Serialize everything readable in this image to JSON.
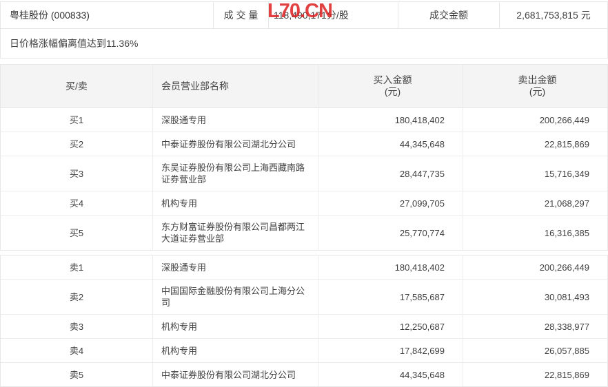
{
  "watermark": "L70.CN",
  "info_bar": {
    "stock_name": "粤桂股份 (000833)",
    "volume_label": "成 交 量",
    "volume_value": "118,490,171分/股",
    "amount_label": "成交金额",
    "amount_value": "2,681,753,815 元",
    "notice": "日价格涨幅偏离值达到11.36%"
  },
  "table": {
    "headers": {
      "rank": "买/卖",
      "name": "会员营业部名称",
      "buy_line1": "买入金额",
      "buy_line2": "(元)",
      "sell_line1": "卖出金额",
      "sell_line2": "(元)"
    },
    "buy_rows": [
      {
        "rank": "买1",
        "name": "深股通专用",
        "buy": "180,418,402",
        "sell": "200,266,449"
      },
      {
        "rank": "买2",
        "name": "中泰证券股份有限公司湖北分公司",
        "buy": "44,345,648",
        "sell": "22,815,869"
      },
      {
        "rank": "买3",
        "name": "东吴证券股份有限公司上海西藏南路证券营业部",
        "buy": "28,447,735",
        "sell": "15,716,349"
      },
      {
        "rank": "买4",
        "name": "机构专用",
        "buy": "27,099,705",
        "sell": "21,068,297"
      },
      {
        "rank": "买5",
        "name": "东方财富证券股份有限公司昌都两江大道证券营业部",
        "buy": "25,770,774",
        "sell": "16,316,385"
      }
    ],
    "sell_rows": [
      {
        "rank": "卖1",
        "name": "深股通专用",
        "buy": "180,418,402",
        "sell": "200,266,449"
      },
      {
        "rank": "卖2",
        "name": "中国国际金融股份有限公司上海分公司",
        "buy": "17,585,687",
        "sell": "30,081,493"
      },
      {
        "rank": "卖3",
        "name": "机构专用",
        "buy": "12,250,687",
        "sell": "28,338,977"
      },
      {
        "rank": "卖4",
        "name": "机构专用",
        "buy": "17,842,699",
        "sell": "26,057,885"
      },
      {
        "rank": "卖5",
        "name": "中泰证券股份有限公司湖北分公司",
        "buy": "44,345,648",
        "sell": "22,815,869"
      }
    ]
  },
  "colors": {
    "watermark_red": "#dd2020",
    "border": "#e7e7e7",
    "header_bg": "#f4f4f4",
    "text": "#404040"
  }
}
